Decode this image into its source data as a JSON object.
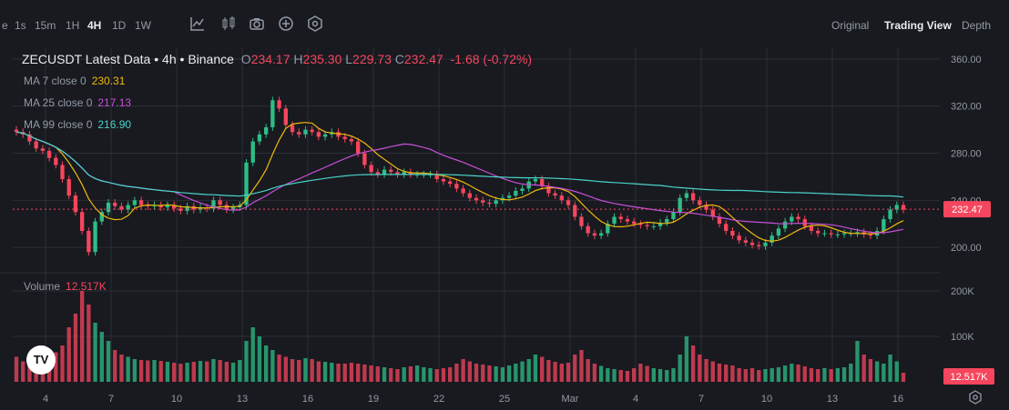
{
  "toolbar": {
    "intervals": [
      "e",
      "1s",
      "15m",
      "1H",
      "4H",
      "1D",
      "1W"
    ],
    "active_interval": "4H",
    "icons": [
      "indicator-icon",
      "candle-type-icon",
      "camera-icon",
      "add-icon",
      "settings-icon"
    ],
    "views": [
      "Original",
      "Trading View",
      "Depth"
    ],
    "active_view": "Trading View"
  },
  "legend": {
    "symbol": "ZECUSDT Latest Data",
    "interval": "4h",
    "exchange": "Binance",
    "o_label": "O",
    "o": "234.17",
    "h_label": "H",
    "h": "235.30",
    "l_label": "L",
    "l": "229.73",
    "c_label": "C",
    "c": "232.47",
    "change": "-1.68 (-0.72%)"
  },
  "ma": [
    {
      "label": "MA 7 close 0",
      "value": "230.31",
      "color": "#f0b90b"
    },
    {
      "label": "MA 25 close 0",
      "value": "217.13",
      "color": "#c94fd9"
    },
    {
      "label": "MA 99 close 0",
      "value": "216.90",
      "color": "#4bd3c9"
    }
  ],
  "volume_legend": {
    "label": "Volume",
    "value": "12.517K"
  },
  "colors": {
    "up": "#2ebd85",
    "down": "#f6465d",
    "grid": "#2b2f36",
    "background": "#181a20"
  },
  "chart_data": {
    "type": "candlestick",
    "symbol": "ZECUSDT",
    "price_axis": {
      "ticks": [
        "360.00",
        "320.00",
        "280.00",
        "240.00",
        "200.00"
      ],
      "ylim": [
        180,
        370
      ]
    },
    "volume_axis": {
      "ticks": [
        "200K",
        "100K"
      ],
      "ylim": [
        0,
        240000
      ]
    },
    "time_axis": {
      "ticks": [
        "4",
        "7",
        "10",
        "13",
        "16",
        "19",
        "22",
        "25",
        "Mar",
        "4",
        "7",
        "10",
        "13",
        "16"
      ]
    },
    "last_price": "232.47",
    "last_volume": "12.517K",
    "close_series": [
      298,
      296,
      290,
      284,
      282,
      276,
      270,
      258,
      244,
      230,
      214,
      196,
      222,
      230,
      238,
      235,
      232,
      236,
      240,
      236,
      235,
      236,
      234,
      236,
      233,
      231,
      235,
      232,
      234,
      233,
      240,
      236,
      232,
      234,
      236,
      272,
      290,
      296,
      302,
      325,
      318,
      304,
      298,
      296,
      300,
      298,
      294,
      296,
      298,
      294,
      292,
      290,
      280,
      270,
      264,
      262,
      266,
      264,
      262,
      264,
      262,
      262,
      262,
      262,
      258,
      256,
      254,
      250,
      246,
      242,
      240,
      238,
      237,
      240,
      242,
      244,
      248,
      250,
      256,
      258,
      252,
      246,
      244,
      240,
      236,
      226,
      218,
      212,
      210,
      212,
      220,
      226,
      224,
      222,
      220,
      219,
      218,
      218,
      221,
      224,
      230,
      242,
      246,
      240,
      236,
      232,
      226,
      220,
      214,
      210,
      206,
      204,
      202,
      201,
      204,
      210,
      216,
      222,
      226,
      224,
      218,
      214,
      212,
      212,
      211,
      211,
      212,
      212,
      213,
      211,
      210,
      214,
      224,
      232,
      236,
      232
    ],
    "volume_series": [
      55,
      45,
      60,
      75,
      80,
      70,
      65,
      80,
      120,
      150,
      200,
      170,
      130,
      110,
      90,
      70,
      60,
      55,
      50,
      48,
      47,
      48,
      46,
      44,
      42,
      40,
      42,
      44,
      46,
      45,
      50,
      48,
      44,
      42,
      48,
      90,
      120,
      100,
      80,
      70,
      60,
      55,
      50,
      48,
      52,
      50,
      45,
      44,
      42,
      40,
      40,
      42,
      40,
      38,
      36,
      34,
      32,
      30,
      28,
      32,
      34,
      36,
      32,
      30,
      28,
      30,
      32,
      40,
      50,
      45,
      40,
      38,
      36,
      34,
      32,
      36,
      40,
      45,
      50,
      60,
      55,
      48,
      44,
      40,
      42,
      60,
      70,
      50,
      40,
      35,
      30,
      28,
      26,
      24,
      30,
      40,
      35,
      30,
      28,
      26,
      30,
      60,
      100,
      80,
      60,
      50,
      45,
      40,
      38,
      36,
      30,
      28,
      30,
      26,
      28,
      30,
      32,
      36,
      40,
      38,
      34,
      30,
      28,
      30,
      28,
      30,
      32,
      40,
      90,
      60,
      50,
      45,
      40,
      60,
      45,
      20
    ]
  }
}
